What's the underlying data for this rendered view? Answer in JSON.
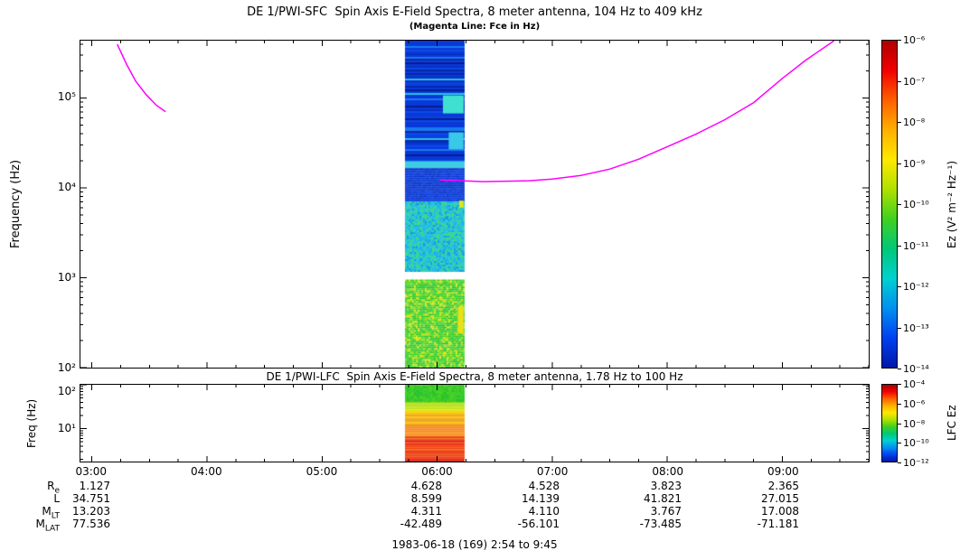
{
  "chart_data": [
    {
      "type": "heatmap",
      "title": "DE 1/PWI-SFC  Spin Axis E-Field Spectra, 8 meter antenna, 104 Hz to 409 kHz",
      "subtitle": "(Magenta Line: Fce in Hz)",
      "ylabel": "Frequency (Hz)",
      "freq_range_log10": [
        2,
        5.64
      ],
      "time_range_hours": [
        2.9,
        9.75
      ],
      "yticks": [
        {
          "label": "10⁵",
          "log10": 5
        },
        {
          "label": "10⁴",
          "log10": 4
        },
        {
          "label": "10³",
          "log10": 3
        },
        {
          "label": "10²",
          "log10": 2
        }
      ],
      "xticks": [
        {
          "label": "03:00",
          "hour": 3
        },
        {
          "label": "04:00",
          "hour": 4
        },
        {
          "label": "05:00",
          "hour": 5
        },
        {
          "label": "06:00",
          "hour": 6
        },
        {
          "label": "07:00",
          "hour": 7
        },
        {
          "label": "08:00",
          "hour": 8
        },
        {
          "label": "09:00",
          "hour": 9
        }
      ],
      "colorbar": {
        "label": "Ez (V² m⁻² Hz⁻¹)",
        "ticks": [
          "10⁻⁶",
          "10⁻⁷",
          "10⁻⁸",
          "10⁻⁹",
          "10⁻¹⁰",
          "10⁻¹¹",
          "10⁻¹²",
          "10⁻¹³",
          "10⁻¹⁴"
        ]
      },
      "colormap": [
        "#b00000",
        "#f00000",
        "#ff6000",
        "#ffb000",
        "#ffe800",
        "#b0e000",
        "#40d020",
        "#00c878",
        "#00d0d0",
        "#0090f0",
        "#0040f0",
        "#0018a8"
      ],
      "burst": {
        "t_start": 5.72,
        "t_end": 6.23,
        "bands": [
          {
            "f_top": 5.64,
            "f_bot": 4.3,
            "mode": "rowstripe",
            "colors": [
              "#0838d8",
              "#0a40e0",
              "#0630c0",
              "#0526a8",
              "#0c48e8",
              "#0838d8",
              "#0838d8",
              "#0838d8",
              "#1878f0",
              "#041c90",
              "#28c0e8",
              "#0838d8"
            ]
          },
          {
            "f_top": 4.3,
            "f_bot": 4.22,
            "mode": "rowstripe",
            "colors": [
              "#28c8e0"
            ]
          },
          {
            "f_top": 4.22,
            "f_bot": 3.85,
            "mode": "speckle",
            "colors": [
              "#0838d8",
              "#0a40e0",
              "#0630c0",
              "#0838d8"
            ]
          },
          {
            "f_top": 3.85,
            "f_bot": 3.08,
            "mode": "speckle",
            "colors": [
              "#18b0e8",
              "#20c0e0",
              "#28ccd0",
              "#30d4a8",
              "#40d880",
              "#28b8e8",
              "#1898e0",
              "#30c8c8"
            ]
          },
          {
            "f_top": 2.98,
            "f_bot": 2.0,
            "mode": "speckle",
            "colors": [
              "#28c428",
              "#30cc30",
              "#40d428",
              "#58d820",
              "#88dc18",
              "#b8e010",
              "#d8e410",
              "#38cc38",
              "#28c428",
              "#48d028"
            ]
          }
        ],
        "patches": [
          {
            "h0": 6.05,
            "h1": 6.23,
            "f0": 4.83,
            "f1": 5.03,
            "color": "#40e0d0"
          },
          {
            "h0": 6.1,
            "h1": 6.23,
            "f0": 4.43,
            "f1": 4.62,
            "color": "#38c8e8"
          },
          {
            "h0": 6.19,
            "h1": 6.23,
            "f0": 3.78,
            "f1": 3.86,
            "color": "#d8e818"
          },
          {
            "h0": 6.18,
            "h1": 6.23,
            "f0": 2.38,
            "f1": 2.68,
            "color": "#e8e018"
          }
        ]
      },
      "fce_line": {
        "color": "#ff00ff",
        "segments": [
          [
            [
              3.22,
              5.6
            ],
            [
              3.3,
              5.38
            ],
            [
              3.38,
              5.19
            ],
            [
              3.47,
              5.04
            ],
            [
              3.56,
              4.92
            ],
            [
              3.64,
              4.85
            ]
          ],
          [
            [
              6.02,
              4.09
            ],
            [
              6.4,
              4.07
            ],
            [
              6.8,
              4.08
            ],
            [
              7.0,
              4.1
            ],
            [
              7.25,
              4.14
            ],
            [
              7.5,
              4.21
            ],
            [
              7.75,
              4.32
            ],
            [
              8.0,
              4.46
            ],
            [
              8.25,
              4.6
            ],
            [
              8.5,
              4.76
            ],
            [
              8.75,
              4.95
            ],
            [
              9.0,
              5.22
            ],
            [
              9.2,
              5.42
            ],
            [
              9.45,
              5.64
            ]
          ]
        ]
      }
    },
    {
      "type": "heatmap",
      "title": "DE 1/PWI-LFC  Spin Axis E-Field Spectra, 8 meter antenna, 1.78 Hz to 100 Hz",
      "ylabel": "Freq (Hz)",
      "freq_range_log10": [
        0.25,
        2
      ],
      "yticks": [
        {
          "label": "10²",
          "log10": 2
        },
        {
          "label": "10¹",
          "log10": 1
        }
      ],
      "colorbar": {
        "label": "LFC Ez",
        "ticks": [
          "10⁻⁴",
          "10⁻⁶",
          "10⁻⁸",
          "10⁻¹⁰",
          "10⁻¹²"
        ]
      },
      "burst": {
        "t_start": 5.72,
        "t_end": 6.23,
        "bands": [
          {
            "f_top": 2.0,
            "f_bot": 1.6,
            "mode": "speckle",
            "colors": [
              "#28c428",
              "#38d028",
              "#50d020",
              "#40cc30",
              "#30c838"
            ]
          },
          {
            "f_top": 1.6,
            "f_bot": 1.4,
            "mode": "rowstripe",
            "colors": [
              "#90d818",
              "#c0e010",
              "#e0e408",
              "#a8dc14"
            ]
          },
          {
            "f_top": 1.4,
            "f_bot": 1.08,
            "mode": "rowstripe",
            "colors": [
              "#f0d808",
              "#f8b810",
              "#f0a018",
              "#f8c808"
            ]
          },
          {
            "f_top": 1.08,
            "f_bot": 0.82,
            "mode": "rowstripe",
            "colors": [
              "#f88818",
              "#f87010",
              "#f89820"
            ]
          },
          {
            "f_top": 0.82,
            "f_bot": 0.25,
            "mode": "rowstripe",
            "colors": [
              "#f04008",
              "#e82008",
              "#d81408",
              "#f05810"
            ]
          }
        ]
      }
    }
  ],
  "ephemeris": {
    "rows": [
      {
        "label": "R",
        "sub": "e",
        "values": [
          "1.127",
          "4.628",
          "4.528",
          "3.823",
          "2.365"
        ]
      },
      {
        "label": "L",
        "sub": "",
        "values": [
          "34.751",
          "8.599",
          "14.139",
          "41.821",
          "27.015"
        ]
      },
      {
        "label": "M",
        "sub": "LT",
        "values": [
          "13.203",
          "4.311",
          "4.110",
          "3.767",
          "17.008"
        ]
      },
      {
        "label": "M",
        "sub": "LAT",
        "values": [
          "77.536",
          "-42.489",
          "-56.101",
          "-73.485",
          "-71.181"
        ]
      }
    ]
  },
  "footer": {
    "text": "1983-06-18 (169) 2:54 to 9:45"
  }
}
